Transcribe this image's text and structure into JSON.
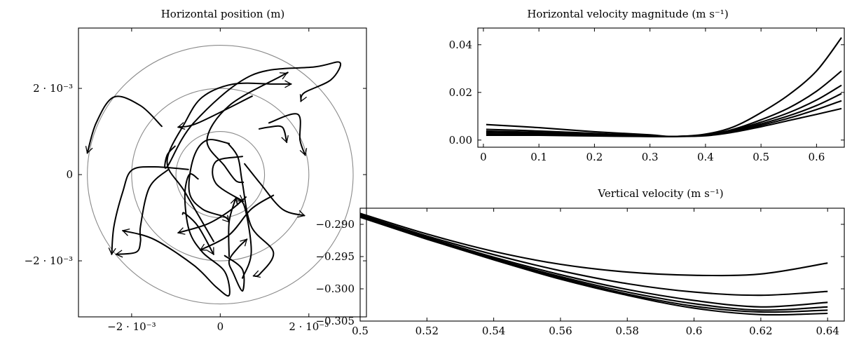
{
  "chart_data": [
    {
      "type": "line",
      "panel": "horizontal-position",
      "title": "Horizontal position (m)",
      "xlim": [
        -0.0032,
        0.0033
      ],
      "ylim": [
        -0.0033,
        0.0034
      ],
      "xticks": [
        {
          "v": -0.002,
          "label": "−2 · 10⁻³"
        },
        {
          "v": 0,
          "label": "0"
        },
        {
          "v": 0.002,
          "label": "2 · 10⁻³"
        }
      ],
      "yticks": [
        {
          "v": 0.002,
          "label": "2 · 10⁻³"
        },
        {
          "v": 0,
          "label": "0"
        },
        {
          "v": -0.002,
          "label": "−2 · 10⁻³"
        }
      ],
      "circles": [
        0.001,
        0.002,
        0.003
      ],
      "series": [
        {
          "points": [
            [
              -0.00132,
              0.00112
            ],
            [
              -0.0018,
              0.0016
            ],
            [
              -0.0024,
              0.0018
            ],
            [
              -0.0028,
              0.0012
            ],
            [
              -0.003,
              0.0005
            ]
          ]
        },
        {
          "points": [
            [
              -0.00102,
              0.00066
            ],
            [
              -0.0012,
              0.00045
            ],
            [
              -0.0012,
              0.00018
            ],
            [
              -0.0006,
              0.0012
            ],
            [
              0.0007,
              0.0023
            ],
            [
              0.00215,
              0.0025
            ],
            [
              0.0027,
              0.0026
            ],
            [
              0.0025,
              0.0022
            ],
            [
              0.0019,
              0.0019
            ],
            [
              0.00182,
              0.0017
            ]
          ]
        },
        {
          "points": [
            [
              0.00052,
              -0.00018
            ],
            [
              0.00035,
              -0.00014
            ],
            [
              0.0001,
              0.0002
            ],
            [
              -0.0003,
              0.0008
            ],
            [
              0.0002,
              0.0016
            ],
            [
              0.0014,
              0.0023
            ],
            [
              0.0015,
              0.00235
            ]
          ]
        },
        {
          "points": [
            [
              0.00072,
              0.00182
            ],
            [
              -0.0005,
              0.0012
            ],
            [
              -0.00095,
              0.0011
            ]
          ]
        },
        {
          "points": [
            [
              0.0005,
              0.00042
            ],
            [
              -0.0001,
              0.0003
            ],
            [
              -0.0001,
              -0.0002
            ],
            [
              0.00052,
              -0.00062
            ]
          ]
        },
        {
          "points": [
            [
              0.0011,
              0.0012
            ],
            [
              0.00175,
              0.0014
            ],
            [
              0.0018,
              0.0008
            ],
            [
              0.00192,
              0.00045
            ]
          ]
        },
        {
          "points": [
            [
              0.00088,
              0.00106
            ],
            [
              0.0011,
              0.0011
            ],
            [
              0.0014,
              0.0011
            ],
            [
              0.0015,
              0.00075
            ]
          ]
        },
        {
          "points": [
            [
              0.00055,
              0.00025
            ],
            [
              0.0009,
              -0.0002
            ],
            [
              0.0014,
              -0.0008
            ],
            [
              0.0019,
              -0.00095
            ]
          ]
        },
        {
          "points": [
            [
              0.0012,
              -0.00048
            ],
            [
              0.0007,
              -0.0008
            ],
            [
              0.0002,
              -0.0014
            ],
            [
              -0.00045,
              -0.00175
            ]
          ]
        },
        {
          "points": [
            [
              0.00058,
              -0.00052
            ],
            [
              0.0002,
              -0.00085
            ],
            [
              -0.0003,
              -0.00115
            ],
            [
              -0.00095,
              -0.00135
            ]
          ]
        },
        {
          "points": [
            [
              0.0002,
              0.00072
            ],
            [
              -0.0003,
              0.0008
            ],
            [
              -0.0006,
              0.0004
            ],
            [
              -0.0007,
              -0.0004
            ],
            [
              -0.0004,
              -0.0008
            ],
            [
              0.0001,
              -0.00098
            ],
            [
              0.0002,
              -0.0011
            ]
          ]
        },
        {
          "points": [
            [
              -0.00117,
              0.00012
            ],
            [
              -0.0016,
              -0.0003
            ],
            [
              -0.0018,
              -0.0012
            ],
            [
              -0.0018,
              -0.00155
            ],
            [
              -0.0019,
              -0.0018
            ],
            [
              -0.00235,
              -0.00185
            ]
          ]
        },
        {
          "points": [
            [
              -0.00072,
              0.00012
            ],
            [
              -0.0015,
              0.00018
            ],
            [
              -0.002,
              0.0001
            ],
            [
              -0.0022,
              -0.0004
            ],
            [
              -0.0024,
              -0.0012
            ],
            [
              -0.00245,
              -0.00185
            ]
          ]
        },
        {
          "points": [
            [
              -0.0005,
              -0.0001
            ],
            [
              -0.0007,
              0.0
            ],
            [
              -0.0008,
              -0.0005
            ],
            [
              -0.0007,
              -0.0013
            ],
            [
              -0.0004,
              -0.0018
            ],
            [
              0.0001,
              -0.00225
            ],
            [
              0.0002,
              -0.0028
            ],
            [
              -0.0001,
              -0.0026
            ],
            [
              -0.0006,
              -0.0021
            ],
            [
              -0.0015,
              -0.0015
            ],
            [
              -0.0022,
              -0.0013
            ]
          ]
        },
        {
          "points": [
            [
              -0.00015,
              -0.00155
            ],
            [
              -0.0008,
              -0.0004
            ],
            [
              -0.0012,
              0.0003
            ],
            [
              -0.0008,
              0.0012
            ],
            [
              -0.0004,
              0.0018
            ],
            [
              0.0003,
              0.0021
            ],
            [
              0.0012,
              0.0021
            ],
            [
              0.0016,
              0.0021
            ]
          ]
        },
        {
          "points": [
            [
              0.00018,
              0.00072
            ],
            [
              0.0004,
              0.0004
            ],
            [
              0.0005,
              -0.0002
            ],
            [
              0.0007,
              -0.0012
            ],
            [
              0.0012,
              -0.0018
            ],
            [
              0.0009,
              -0.0023
            ],
            [
              0.00075,
              -0.00235
            ]
          ]
        },
        {
          "points": [
            [
              0.0001,
              -0.00188
            ],
            [
              0.0005,
              -0.0022
            ],
            [
              0.0005,
              -0.0027
            ],
            [
              0.0003,
              -0.0023
            ],
            [
              0.0002,
              -0.002
            ],
            [
              0.0004,
              -0.0017
            ],
            [
              0.0006,
              -0.0015
            ]
          ]
        },
        {
          "points": [
            [
              0.0002,
              -0.0019
            ],
            [
              0.0002,
              -0.0011
            ],
            [
              0.00035,
              -0.00055
            ]
          ]
        },
        {
          "points": [
            [
              -0.00085,
              -0.00092
            ],
            [
              -0.0008,
              -0.0009
            ],
            [
              -0.0005,
              -0.0012
            ],
            [
              -0.00015,
              -0.00185
            ]
          ]
        },
        {
          "points": [
            [
              0.0005,
              -0.0024
            ],
            [
              0.0007,
              -0.0018
            ],
            [
              0.00055,
              -0.00075
            ],
            [
              0.00035,
              -0.00055
            ]
          ]
        }
      ],
      "arrows": true
    },
    {
      "type": "line",
      "panel": "horizontal-velocity",
      "title": "Horizontal velocity magnitude (m s⁻¹)",
      "xlim": [
        -0.01,
        0.65
      ],
      "ylim": [
        -0.003,
        0.047
      ],
      "xticks": [
        {
          "v": 0,
          "label": "0"
        },
        {
          "v": 0.1,
          "label": "0.1"
        },
        {
          "v": 0.2,
          "label": "0.2"
        },
        {
          "v": 0.3,
          "label": "0.3"
        },
        {
          "v": 0.4,
          "label": "0.4"
        },
        {
          "v": 0.5,
          "label": "0.5"
        },
        {
          "v": 0.6,
          "label": "0.6"
        }
      ],
      "yticks": [
        {
          "v": 0.04,
          "label": "0.04"
        },
        {
          "v": 0.02,
          "label": "0.02"
        },
        {
          "v": 0,
          "label": "0.00"
        }
      ],
      "series": [
        {
          "x": [
            0.005,
            0.1,
            0.2,
            0.3,
            0.34,
            0.4,
            0.45,
            0.5,
            0.55,
            0.6,
            0.645
          ],
          "values": [
            0.0065,
            0.0052,
            0.0035,
            0.0022,
            0.0015,
            0.0025,
            0.0055,
            0.0115,
            0.019,
            0.029,
            0.043
          ]
        },
        {
          "x": [
            0.005,
            0.1,
            0.2,
            0.3,
            0.34,
            0.4,
            0.45,
            0.5,
            0.55,
            0.6,
            0.645
          ],
          "values": [
            0.0045,
            0.0038,
            0.0028,
            0.0018,
            0.0015,
            0.0022,
            0.0045,
            0.0085,
            0.0135,
            0.0205,
            0.029
          ]
        },
        {
          "x": [
            0.005,
            0.1,
            0.2,
            0.3,
            0.34,
            0.4,
            0.45,
            0.5,
            0.55,
            0.6,
            0.645
          ],
          "values": [
            0.0038,
            0.0032,
            0.0024,
            0.0017,
            0.0015,
            0.0021,
            0.0042,
            0.0075,
            0.0115,
            0.0168,
            0.023
          ]
        },
        {
          "x": [
            0.005,
            0.1,
            0.2,
            0.3,
            0.34,
            0.4,
            0.45,
            0.5,
            0.55,
            0.6,
            0.645
          ],
          "values": [
            0.0032,
            0.0028,
            0.0021,
            0.0016,
            0.0015,
            0.002,
            0.0039,
            0.0068,
            0.0102,
            0.0145,
            0.0195
          ]
        },
        {
          "x": [
            0.005,
            0.1,
            0.2,
            0.3,
            0.34,
            0.4,
            0.45,
            0.5,
            0.55,
            0.6,
            0.645
          ],
          "values": [
            0.0026,
            0.0024,
            0.0019,
            0.0015,
            0.0015,
            0.0019,
            0.0036,
            0.0062,
            0.0092,
            0.0128,
            0.0165
          ]
        },
        {
          "x": [
            0.005,
            0.1,
            0.2,
            0.3,
            0.34,
            0.4,
            0.45,
            0.5,
            0.55,
            0.6,
            0.645
          ],
          "values": [
            0.002,
            0.002,
            0.0017,
            0.0015,
            0.0015,
            0.0018,
            0.0033,
            0.0056,
            0.0082,
            0.0108,
            0.0132
          ]
        }
      ]
    },
    {
      "type": "line",
      "panel": "vertical-velocity",
      "title": "Vertical velocity (m s⁻¹)",
      "xlim": [
        0.5,
        0.645
      ],
      "ylim": [
        -0.305,
        -0.2875
      ],
      "xticks": [
        {
          "v": 0.5,
          "label": "0.5"
        },
        {
          "v": 0.52,
          "label": "0.52"
        },
        {
          "v": 0.54,
          "label": "0.54"
        },
        {
          "v": 0.56,
          "label": "0.56"
        },
        {
          "v": 0.58,
          "label": "0.58"
        },
        {
          "v": 0.6,
          "label": "0.6"
        },
        {
          "v": 0.62,
          "label": "0.62"
        },
        {
          "v": 0.64,
          "label": "0.64"
        }
      ],
      "yticks": [
        {
          "v": -0.29,
          "label": "−0.290"
        },
        {
          "v": -0.295,
          "label": "−0.295"
        },
        {
          "v": -0.3,
          "label": "−0.300"
        },
        {
          "v": -0.305,
          "label": "−0.305"
        }
      ],
      "series": [
        {
          "x": [
            0.5,
            0.52,
            0.54,
            0.56,
            0.58,
            0.6,
            0.62,
            0.64
          ],
          "values": [
            -0.2883,
            -0.2915,
            -0.2942,
            -0.2962,
            -0.2974,
            -0.2979,
            -0.2977,
            -0.296
          ]
        },
        {
          "x": [
            0.5,
            0.52,
            0.54,
            0.56,
            0.58,
            0.6,
            0.62,
            0.64
          ],
          "values": [
            -0.2885,
            -0.2918,
            -0.2947,
            -0.2972,
            -0.2992,
            -0.3005,
            -0.301,
            -0.3004
          ]
        },
        {
          "x": [
            0.5,
            0.52,
            0.54,
            0.56,
            0.58,
            0.6,
            0.62,
            0.64
          ],
          "values": [
            -0.2886,
            -0.292,
            -0.2951,
            -0.2978,
            -0.3001,
            -0.3018,
            -0.3028,
            -0.3021
          ]
        },
        {
          "x": [
            0.5,
            0.52,
            0.54,
            0.56,
            0.58,
            0.6,
            0.62,
            0.64
          ],
          "values": [
            -0.2887,
            -0.2921,
            -0.2953,
            -0.2981,
            -0.3005,
            -0.3023,
            -0.3033,
            -0.3028
          ]
        },
        {
          "x": [
            0.5,
            0.52,
            0.54,
            0.56,
            0.58,
            0.6,
            0.62,
            0.64
          ],
          "values": [
            -0.2888,
            -0.2922,
            -0.2954,
            -0.2983,
            -0.3008,
            -0.3027,
            -0.3036,
            -0.3033
          ]
        },
        {
          "x": [
            0.5,
            0.52,
            0.54,
            0.56,
            0.58,
            0.6,
            0.62,
            0.64
          ],
          "values": [
            -0.2889,
            -0.2923,
            -0.2955,
            -0.2985,
            -0.301,
            -0.303,
            -0.304,
            -0.3038
          ]
        }
      ]
    }
  ]
}
